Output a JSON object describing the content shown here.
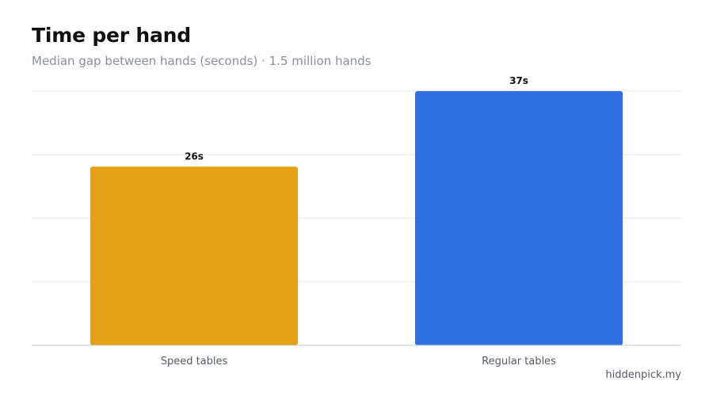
{
  "chart_data": {
    "type": "bar",
    "title": "Time per hand",
    "subtitle": "Median gap between hands (seconds) · 1.5 million hands",
    "categories": [
      "Speed tables",
      "Regular tables"
    ],
    "values": [
      26,
      37
    ],
    "data_labels": [
      "26s",
      "37s"
    ],
    "colors": [
      "#E5A115",
      "#2E6FE3"
    ],
    "xlabel": "",
    "ylabel": "",
    "ylim": [
      0,
      37
    ],
    "grid": true,
    "legend": "none"
  },
  "source": "hiddenpick.my"
}
